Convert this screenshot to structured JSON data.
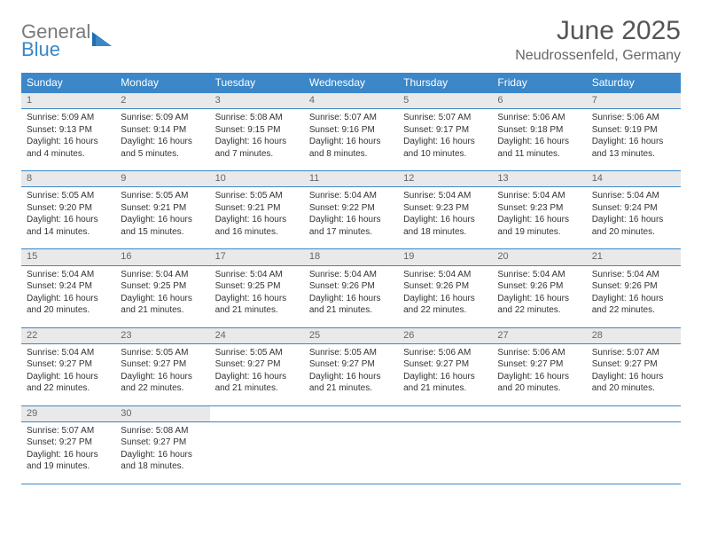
{
  "logo": {
    "word1": "General",
    "word2": "Blue"
  },
  "title": "June 2025",
  "location": "Neudrossenfeld, Germany",
  "colors": {
    "header_bg": "#3b87c8",
    "header_fg": "#ffffff",
    "daynum_bg": "#e9e9e9",
    "daynum_fg": "#666666",
    "rule": "#3b87c8",
    "body_text": "#333333",
    "logo_grey": "#7a7a7a",
    "logo_blue": "#3b87c8"
  },
  "typography": {
    "title_fontsize": 30,
    "location_fontsize": 16,
    "weekday_fontsize": 12,
    "daynum_fontsize": 11,
    "cell_fontsize": 10
  },
  "weekdays": [
    "Sunday",
    "Monday",
    "Tuesday",
    "Wednesday",
    "Thursday",
    "Friday",
    "Saturday"
  ],
  "weeks": [
    [
      {
        "n": "1",
        "sunrise": "Sunrise: 5:09 AM",
        "sunset": "Sunset: 9:13 PM",
        "daylight": "Daylight: 16 hours and 4 minutes."
      },
      {
        "n": "2",
        "sunrise": "Sunrise: 5:09 AM",
        "sunset": "Sunset: 9:14 PM",
        "daylight": "Daylight: 16 hours and 5 minutes."
      },
      {
        "n": "3",
        "sunrise": "Sunrise: 5:08 AM",
        "sunset": "Sunset: 9:15 PM",
        "daylight": "Daylight: 16 hours and 7 minutes."
      },
      {
        "n": "4",
        "sunrise": "Sunrise: 5:07 AM",
        "sunset": "Sunset: 9:16 PM",
        "daylight": "Daylight: 16 hours and 8 minutes."
      },
      {
        "n": "5",
        "sunrise": "Sunrise: 5:07 AM",
        "sunset": "Sunset: 9:17 PM",
        "daylight": "Daylight: 16 hours and 10 minutes."
      },
      {
        "n": "6",
        "sunrise": "Sunrise: 5:06 AM",
        "sunset": "Sunset: 9:18 PM",
        "daylight": "Daylight: 16 hours and 11 minutes."
      },
      {
        "n": "7",
        "sunrise": "Sunrise: 5:06 AM",
        "sunset": "Sunset: 9:19 PM",
        "daylight": "Daylight: 16 hours and 13 minutes."
      }
    ],
    [
      {
        "n": "8",
        "sunrise": "Sunrise: 5:05 AM",
        "sunset": "Sunset: 9:20 PM",
        "daylight": "Daylight: 16 hours and 14 minutes."
      },
      {
        "n": "9",
        "sunrise": "Sunrise: 5:05 AM",
        "sunset": "Sunset: 9:21 PM",
        "daylight": "Daylight: 16 hours and 15 minutes."
      },
      {
        "n": "10",
        "sunrise": "Sunrise: 5:05 AM",
        "sunset": "Sunset: 9:21 PM",
        "daylight": "Daylight: 16 hours and 16 minutes."
      },
      {
        "n": "11",
        "sunrise": "Sunrise: 5:04 AM",
        "sunset": "Sunset: 9:22 PM",
        "daylight": "Daylight: 16 hours and 17 minutes."
      },
      {
        "n": "12",
        "sunrise": "Sunrise: 5:04 AM",
        "sunset": "Sunset: 9:23 PM",
        "daylight": "Daylight: 16 hours and 18 minutes."
      },
      {
        "n": "13",
        "sunrise": "Sunrise: 5:04 AM",
        "sunset": "Sunset: 9:23 PM",
        "daylight": "Daylight: 16 hours and 19 minutes."
      },
      {
        "n": "14",
        "sunrise": "Sunrise: 5:04 AM",
        "sunset": "Sunset: 9:24 PM",
        "daylight": "Daylight: 16 hours and 20 minutes."
      }
    ],
    [
      {
        "n": "15",
        "sunrise": "Sunrise: 5:04 AM",
        "sunset": "Sunset: 9:24 PM",
        "daylight": "Daylight: 16 hours and 20 minutes."
      },
      {
        "n": "16",
        "sunrise": "Sunrise: 5:04 AM",
        "sunset": "Sunset: 9:25 PM",
        "daylight": "Daylight: 16 hours and 21 minutes."
      },
      {
        "n": "17",
        "sunrise": "Sunrise: 5:04 AM",
        "sunset": "Sunset: 9:25 PM",
        "daylight": "Daylight: 16 hours and 21 minutes."
      },
      {
        "n": "18",
        "sunrise": "Sunrise: 5:04 AM",
        "sunset": "Sunset: 9:26 PM",
        "daylight": "Daylight: 16 hours and 21 minutes."
      },
      {
        "n": "19",
        "sunrise": "Sunrise: 5:04 AM",
        "sunset": "Sunset: 9:26 PM",
        "daylight": "Daylight: 16 hours and 22 minutes."
      },
      {
        "n": "20",
        "sunrise": "Sunrise: 5:04 AM",
        "sunset": "Sunset: 9:26 PM",
        "daylight": "Daylight: 16 hours and 22 minutes."
      },
      {
        "n": "21",
        "sunrise": "Sunrise: 5:04 AM",
        "sunset": "Sunset: 9:26 PM",
        "daylight": "Daylight: 16 hours and 22 minutes."
      }
    ],
    [
      {
        "n": "22",
        "sunrise": "Sunrise: 5:04 AM",
        "sunset": "Sunset: 9:27 PM",
        "daylight": "Daylight: 16 hours and 22 minutes."
      },
      {
        "n": "23",
        "sunrise": "Sunrise: 5:05 AM",
        "sunset": "Sunset: 9:27 PM",
        "daylight": "Daylight: 16 hours and 22 minutes."
      },
      {
        "n": "24",
        "sunrise": "Sunrise: 5:05 AM",
        "sunset": "Sunset: 9:27 PM",
        "daylight": "Daylight: 16 hours and 21 minutes."
      },
      {
        "n": "25",
        "sunrise": "Sunrise: 5:05 AM",
        "sunset": "Sunset: 9:27 PM",
        "daylight": "Daylight: 16 hours and 21 minutes."
      },
      {
        "n": "26",
        "sunrise": "Sunrise: 5:06 AM",
        "sunset": "Sunset: 9:27 PM",
        "daylight": "Daylight: 16 hours and 21 minutes."
      },
      {
        "n": "27",
        "sunrise": "Sunrise: 5:06 AM",
        "sunset": "Sunset: 9:27 PM",
        "daylight": "Daylight: 16 hours and 20 minutes."
      },
      {
        "n": "28",
        "sunrise": "Sunrise: 5:07 AM",
        "sunset": "Sunset: 9:27 PM",
        "daylight": "Daylight: 16 hours and 20 minutes."
      }
    ],
    [
      {
        "n": "29",
        "sunrise": "Sunrise: 5:07 AM",
        "sunset": "Sunset: 9:27 PM",
        "daylight": "Daylight: 16 hours and 19 minutes."
      },
      {
        "n": "30",
        "sunrise": "Sunrise: 5:08 AM",
        "sunset": "Sunset: 9:27 PM",
        "daylight": "Daylight: 16 hours and 18 minutes."
      },
      null,
      null,
      null,
      null,
      null
    ]
  ]
}
